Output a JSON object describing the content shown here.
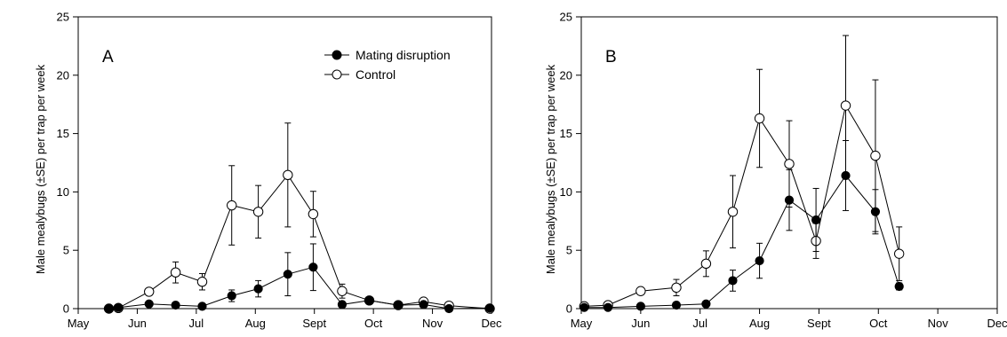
{
  "chart_data": [
    {
      "type": "line",
      "panel_label": "A",
      "ylabel": "Male mealybugs (±SE) per trap per week",
      "xlabel": "",
      "x_ticks": [
        "May",
        "Jun",
        "Jul",
        "Aug",
        "Sept",
        "Oct",
        "Nov",
        "Dec"
      ],
      "x_domain_months": [
        0,
        7
      ],
      "ylim": [
        0,
        25
      ],
      "y_ticks": [
        0,
        5,
        10,
        15,
        20,
        25
      ],
      "legend": {
        "placement": "top-right",
        "entries": [
          "Mating disruption",
          "Control"
        ]
      },
      "series": [
        {
          "name": "Mating disruption",
          "marker": "filled-circle",
          "points": [
            {
              "x": 0.52,
              "y": 0.0,
              "se": 0.0
            },
            {
              "x": 0.68,
              "y": 0.1,
              "se": 0.05
            },
            {
              "x": 1.2,
              "y": 0.4,
              "se": 0.15
            },
            {
              "x": 1.65,
              "y": 0.3,
              "se": 0.1
            },
            {
              "x": 2.1,
              "y": 0.2,
              "se": 0.1
            },
            {
              "x": 2.6,
              "y": 1.1,
              "se": 0.5
            },
            {
              "x": 3.05,
              "y": 1.7,
              "se": 0.7
            },
            {
              "x": 3.55,
              "y": 2.95,
              "se": 1.85
            },
            {
              "x": 3.98,
              "y": 3.55,
              "se": 2.0
            },
            {
              "x": 4.47,
              "y": 0.35,
              "se": 0.2
            },
            {
              "x": 4.93,
              "y": 0.7,
              "se": 0.1
            },
            {
              "x": 5.42,
              "y": 0.3,
              "se": 0.1
            },
            {
              "x": 5.85,
              "y": 0.35,
              "se": 0.2
            },
            {
              "x": 6.28,
              "y": 0.0,
              "se": 0.05
            },
            {
              "x": 6.97,
              "y": 0.05,
              "se": 0.05
            }
          ]
        },
        {
          "name": "Control",
          "marker": "open-circle",
          "points": [
            {
              "x": 0.52,
              "y": 0.0,
              "se": 0.0
            },
            {
              "x": 0.68,
              "y": 0.05,
              "se": 0.05
            },
            {
              "x": 1.2,
              "y": 1.45,
              "se": 0.3
            },
            {
              "x": 1.65,
              "y": 3.1,
              "se": 0.9
            },
            {
              "x": 2.1,
              "y": 2.3,
              "se": 0.7
            },
            {
              "x": 2.6,
              "y": 8.85,
              "se": 3.4
            },
            {
              "x": 3.05,
              "y": 8.3,
              "se": 2.25
            },
            {
              "x": 3.55,
              "y": 11.45,
              "se": 4.45
            },
            {
              "x": 3.98,
              "y": 8.1,
              "se": 1.95
            },
            {
              "x": 4.47,
              "y": 1.5,
              "se": 0.6
            },
            {
              "x": 4.93,
              "y": 0.7,
              "se": 0.15
            },
            {
              "x": 5.42,
              "y": 0.3,
              "se": 0.1
            },
            {
              "x": 5.85,
              "y": 0.6,
              "se": 0.15
            },
            {
              "x": 6.28,
              "y": 0.25,
              "se": 0.1
            },
            {
              "x": 6.97,
              "y": 0.0,
              "se": 0.05
            }
          ]
        }
      ]
    },
    {
      "type": "line",
      "panel_label": "B",
      "ylabel": "Male mealybugs (±SE) per trap per week",
      "xlabel": "",
      "x_ticks": [
        "May",
        "Jun",
        "Jul",
        "Aug",
        "Sept",
        "Oct",
        "Nov",
        "Dec"
      ],
      "x_domain_months": [
        0,
        7
      ],
      "ylim": [
        0,
        25
      ],
      "y_ticks": [
        0,
        5,
        10,
        15,
        20,
        25
      ],
      "series": [
        {
          "name": "Mating disruption",
          "marker": "filled-circle",
          "points": [
            {
              "x": 0.05,
              "y": 0.1,
              "se": 0.05
            },
            {
              "x": 0.45,
              "y": 0.1,
              "se": 0.05
            },
            {
              "x": 1.0,
              "y": 0.2,
              "se": 0.05
            },
            {
              "x": 1.6,
              "y": 0.3,
              "se": 0.05
            },
            {
              "x": 2.1,
              "y": 0.4,
              "se": 0.05
            },
            {
              "x": 2.55,
              "y": 2.4,
              "se": 0.9
            },
            {
              "x": 3.0,
              "y": 4.1,
              "se": 1.5
            },
            {
              "x": 3.5,
              "y": 9.3,
              "se": 2.6
            },
            {
              "x": 3.95,
              "y": 7.6,
              "se": 2.7
            },
            {
              "x": 4.45,
              "y": 11.4,
              "se": 3.0
            },
            {
              "x": 4.95,
              "y": 8.3,
              "se": 1.9
            },
            {
              "x": 5.35,
              "y": 1.9,
              "se": 0.3
            }
          ]
        },
        {
          "name": "Control",
          "marker": "open-circle",
          "points": [
            {
              "x": 0.05,
              "y": 0.2,
              "se": 0.05
            },
            {
              "x": 0.45,
              "y": 0.3,
              "se": 0.1
            },
            {
              "x": 1.0,
              "y": 1.5,
              "se": 0.3
            },
            {
              "x": 1.6,
              "y": 1.8,
              "se": 0.7
            },
            {
              "x": 2.1,
              "y": 3.85,
              "se": 1.1
            },
            {
              "x": 2.55,
              "y": 8.3,
              "se": 3.1
            },
            {
              "x": 3.0,
              "y": 16.3,
              "se": 4.2
            },
            {
              "x": 3.5,
              "y": 12.4,
              "se": 3.7
            },
            {
              "x": 3.95,
              "y": 5.8,
              "se": 1.5
            },
            {
              "x": 4.45,
              "y": 17.4,
              "se": 6.0
            },
            {
              "x": 4.95,
              "y": 13.1,
              "se": 6.5
            },
            {
              "x": 5.35,
              "y": 4.7,
              "se": 2.3
            }
          ]
        }
      ]
    }
  ]
}
